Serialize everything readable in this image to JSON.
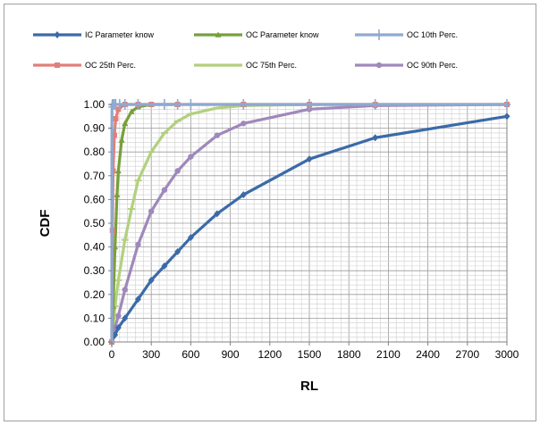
{
  "chart_data": {
    "type": "line",
    "xlabel": "RL",
    "ylabel": "CDF",
    "xlim": [
      0,
      3000
    ],
    "ylim": [
      0,
      1
    ],
    "x_ticks": [
      0,
      300,
      600,
      900,
      1200,
      1500,
      1800,
      2100,
      2400,
      2700,
      3000
    ],
    "x_tick_labels": [
      "0",
      "300",
      "600",
      "900",
      "1200",
      "1500",
      "1800",
      "2100",
      "2400",
      "2700",
      "3000"
    ],
    "y_ticks": [
      0,
      0.1,
      0.2,
      0.3,
      0.4,
      0.5,
      0.6,
      0.7,
      0.8,
      0.9,
      1.0
    ],
    "y_tick_labels": [
      "0.00",
      "0.10",
      "0.20",
      "0.30",
      "0.40",
      "0.50",
      "0.60",
      "0.70",
      "0.80",
      "0.90",
      "1.00"
    ],
    "grid": true,
    "legend_position": "top",
    "series": [
      {
        "name": "IC Parameter know",
        "color": "#3b6aa8",
        "marker": "diamond",
        "points": [
          [
            0,
            0
          ],
          [
            25,
            0.03
          ],
          [
            50,
            0.06
          ],
          [
            100,
            0.1
          ],
          [
            200,
            0.18
          ],
          [
            300,
            0.26
          ],
          [
            400,
            0.32
          ],
          [
            500,
            0.38
          ],
          [
            600,
            0.44
          ],
          [
            800,
            0.54
          ],
          [
            1000,
            0.62
          ],
          [
            1500,
            0.77
          ],
          [
            2000,
            0.86
          ],
          [
            3000,
            0.95
          ]
        ]
      },
      {
        "name": "OC Parameter know",
        "color": "#76a03a",
        "marker": "triangle",
        "points": [
          [
            0,
            0
          ],
          [
            10,
            0.15
          ],
          [
            25,
            0.4
          ],
          [
            40,
            0.62
          ],
          [
            50,
            0.72
          ],
          [
            75,
            0.85
          ],
          [
            100,
            0.92
          ],
          [
            150,
            0.97
          ],
          [
            200,
            0.99
          ],
          [
            300,
            1.0
          ],
          [
            500,
            1.0
          ]
        ]
      },
      {
        "name": "OC 10th Perc.",
        "color": "#8fa9d0",
        "marker": "plus",
        "points": [
          [
            0,
            0
          ],
          [
            1,
            0.9
          ],
          [
            2,
            0.99
          ],
          [
            5,
            1.0
          ],
          [
            10,
            1.0
          ],
          [
            20,
            1.0
          ],
          [
            30,
            1.0
          ],
          [
            60,
            1.0
          ],
          [
            100,
            1.0
          ],
          [
            200,
            1.0
          ],
          [
            400,
            1.0
          ],
          [
            500,
            1.0
          ],
          [
            600,
            1.0
          ],
          [
            1000,
            1.0
          ],
          [
            1500,
            1.0
          ],
          [
            2000,
            1.0
          ],
          [
            3000,
            1.0
          ]
        ]
      },
      {
        "name": "OC 25th Perc.",
        "color": "#e07f7a",
        "marker": "square",
        "points": [
          [
            0,
            0
          ],
          [
            5,
            0.47
          ],
          [
            10,
            0.72
          ],
          [
            20,
            0.87
          ],
          [
            30,
            0.94
          ],
          [
            50,
            0.98
          ],
          [
            100,
            1.0
          ],
          [
            200,
            1.0
          ],
          [
            300,
            1.0
          ],
          [
            500,
            1.0
          ],
          [
            1000,
            1.0
          ],
          [
            1500,
            1.0
          ],
          [
            2000,
            1.0
          ],
          [
            3000,
            1.0
          ]
        ]
      },
      {
        "name": "OC 75th Perc.",
        "color": "#b2d07e",
        "marker": "dash",
        "points": [
          [
            0,
            0
          ],
          [
            25,
            0.15
          ],
          [
            50,
            0.26
          ],
          [
            100,
            0.43
          ],
          [
            150,
            0.56
          ],
          [
            200,
            0.68
          ],
          [
            300,
            0.8
          ],
          [
            400,
            0.88
          ],
          [
            500,
            0.93
          ],
          [
            600,
            0.96
          ],
          [
            800,
            0.985
          ],
          [
            1000,
            0.995
          ],
          [
            1500,
            1.0
          ],
          [
            2000,
            1.0
          ],
          [
            3000,
            1.0
          ]
        ]
      },
      {
        "name": "OC 90th Perc.",
        "color": "#9f88bb",
        "marker": "circle",
        "points": [
          [
            0,
            0
          ],
          [
            25,
            0.06
          ],
          [
            50,
            0.11
          ],
          [
            100,
            0.22
          ],
          [
            200,
            0.41
          ],
          [
            300,
            0.55
          ],
          [
            400,
            0.64
          ],
          [
            500,
            0.72
          ],
          [
            600,
            0.78
          ],
          [
            800,
            0.87
          ],
          [
            1000,
            0.92
          ],
          [
            1500,
            0.98
          ],
          [
            2000,
            0.995
          ],
          [
            3000,
            1.0
          ]
        ]
      }
    ]
  }
}
